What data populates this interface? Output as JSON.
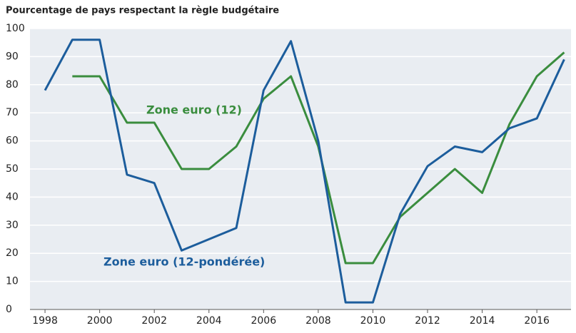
{
  "chart_data": {
    "type": "line",
    "title": "Pourcentage de pays respectant la règle budgétaire",
    "x": [
      1998,
      1999,
      2000,
      2001,
      2002,
      2003,
      2004,
      2005,
      2006,
      2007,
      2008,
      2009,
      2010,
      2011,
      2012,
      2013,
      2014,
      2015,
      2016,
      2017
    ],
    "series": [
      {
        "name": "Zone euro (12)",
        "color": "#3a8d3e",
        "values": [
          null,
          83,
          83,
          66.5,
          66.5,
          50,
          50,
          58,
          75,
          83,
          58,
          16.5,
          16.5,
          33,
          41.5,
          50,
          41.5,
          66,
          83,
          91.5
        ]
      },
      {
        "name": "Zone euro (12-pondérée)",
        "color": "#1c5d9c",
        "values": [
          78,
          96,
          96,
          48,
          45,
          21,
          25,
          29,
          78,
          95.5,
          60,
          2.5,
          2.5,
          34,
          51,
          58,
          56,
          64.5,
          68,
          89
        ]
      }
    ],
    "xlim": [
      1997.45,
      2017.25
    ],
    "xticks": [
      1998,
      2000,
      2002,
      2004,
      2006,
      2008,
      2010,
      2012,
      2014,
      2016
    ],
    "ylim": [
      0,
      100
    ],
    "yticks": [
      0,
      10,
      20,
      30,
      40,
      50,
      60,
      70,
      80,
      90,
      100
    ],
    "grid": true
  }
}
